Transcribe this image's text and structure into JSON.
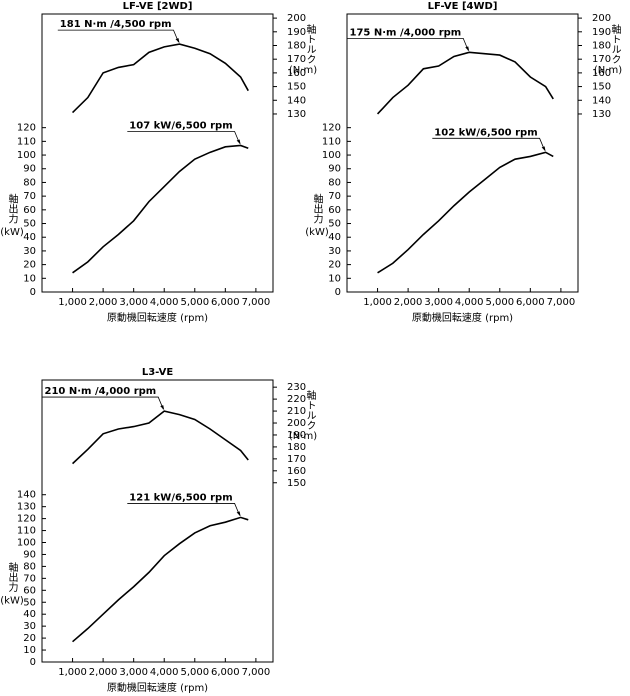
{
  "chart_data": [
    {
      "type": "line",
      "title": "LF-VE [2WD]",
      "xlabel": "原動機回転速度 (rpm)",
      "ylabel": "軸出力",
      "yunit": "(kW)",
      "y2label": "軸トルク",
      "y2unit": "(N·m)",
      "x": [
        1000,
        1500,
        2000,
        2500,
        3000,
        3500,
        4000,
        4500,
        5000,
        5500,
        6000,
        6500,
        6750
      ],
      "series": [
        {
          "axis": "y2",
          "color": "#000000",
          "values": [
            131,
            142,
            160,
            164,
            166,
            175,
            179,
            181,
            178,
            174,
            167,
            157,
            147
          ]
        },
        {
          "color": "#000000",
          "values": [
            14,
            22,
            33,
            42,
            52,
            66,
            77,
            88,
            97,
            102,
            106,
            107,
            105
          ]
        }
      ],
      "annotations": [
        "181 N·m /4,500 rpm",
        "107 kW/6,500 rpm"
      ],
      "xlim": [
        0,
        7560
      ],
      "xticks": [
        {
          "value": 1000,
          "label": "1,000"
        },
        {
          "value": 2000,
          "label": "2,000"
        },
        {
          "value": 3000,
          "label": "3,000"
        },
        {
          "value": 4000,
          "label": "4,000"
        },
        {
          "value": 5000,
          "label": "5,000"
        },
        {
          "value": 6000,
          "label": "6,000"
        },
        {
          "value": 7000,
          "label": "7,000"
        }
      ],
      "ylim": [
        0,
        203
      ],
      "yticks": [
        0,
        10,
        20,
        30,
        40,
        50,
        60,
        70,
        80,
        90,
        100,
        110,
        120
      ],
      "y2lim": [
        0,
        203
      ],
      "y2ticks": [
        130,
        140,
        150,
        160,
        170,
        180,
        190,
        200
      ]
    },
    {
      "type": "line",
      "title": "LF-VE [4WD]",
      "xlabel": "原動機回転速度 (rpm)",
      "ylabel": "軸出力",
      "yunit": "(kW)",
      "y2label": "軸トルク",
      "y2unit": "(N·m)",
      "x": [
        1000,
        1500,
        2000,
        2500,
        3000,
        3500,
        4000,
        4500,
        5000,
        5500,
        6000,
        6500,
        6750
      ],
      "series": [
        {
          "axis": "y2",
          "color": "#000000",
          "values": [
            130,
            142,
            151,
            163,
            165,
            172,
            175,
            174,
            173,
            168,
            157,
            150,
            141
          ]
        },
        {
          "color": "#000000",
          "values": [
            14,
            21,
            31,
            42,
            52,
            63,
            73,
            82,
            91,
            97,
            99,
            102,
            99
          ]
        }
      ],
      "annotations": [
        "175 N·m /4,000 rpm",
        "102 kW/6,500 rpm"
      ],
      "xlim": [
        0,
        7560
      ],
      "xticks": [
        {
          "value": 1000,
          "label": "1,000"
        },
        {
          "value": 2000,
          "label": "2,000"
        },
        {
          "value": 3000,
          "label": "3,000"
        },
        {
          "value": 4000,
          "label": "4,000"
        },
        {
          "value": 5000,
          "label": "5,000"
        },
        {
          "value": 6000,
          "label": "6,000"
        },
        {
          "value": 7000,
          "label": "7,000"
        }
      ],
      "ylim": [
        0,
        203
      ],
      "yticks": [
        0,
        10,
        20,
        30,
        40,
        50,
        60,
        70,
        80,
        90,
        100,
        110,
        120
      ],
      "y2lim": [
        0,
        203
      ],
      "y2ticks": [
        130,
        140,
        150,
        160,
        170,
        180,
        190,
        200
      ]
    },
    {
      "type": "line",
      "title": "L3-VE",
      "xlabel": "原動機回転速度 (rpm)",
      "ylabel": "軸出力",
      "yunit": "(kW)",
      "y2label": "軸トルク",
      "y2unit": "(N·m)",
      "x": [
        1000,
        1500,
        2000,
        2500,
        3000,
        3500,
        4000,
        4500,
        5000,
        5500,
        6000,
        6500,
        6750
      ],
      "series": [
        {
          "axis": "y2",
          "color": "#000000",
          "values": [
            166,
            178,
            191,
            195,
            197,
            200,
            210,
            207,
            203,
            195,
            186,
            177,
            169
          ]
        },
        {
          "color": "#000000",
          "values": [
            17,
            28,
            40,
            52,
            63,
            75,
            89,
            99,
            108,
            114,
            117,
            121,
            119
          ]
        }
      ],
      "annotations": [
        "210 N·m /4,000 rpm",
        "121 kW/6,500 rpm"
      ],
      "xlim": [
        0,
        7560
      ],
      "xticks": [
        {
          "value": 1000,
          "label": "1,000"
        },
        {
          "value": 2000,
          "label": "2,000"
        },
        {
          "value": 3000,
          "label": "3,000"
        },
        {
          "value": 4000,
          "label": "4,000"
        },
        {
          "value": 5000,
          "label": "5,000"
        },
        {
          "value": 6000,
          "label": "6,000"
        },
        {
          "value": 7000,
          "label": "7,000"
        }
      ],
      "ylim": [
        0,
        236
      ],
      "yticks": [
        0,
        10,
        20,
        30,
        40,
        50,
        60,
        70,
        80,
        90,
        100,
        110,
        120,
        130,
        140
      ],
      "y2lim": [
        0,
        236
      ],
      "y2ticks": [
        150,
        160,
        170,
        180,
        190,
        200,
        210,
        220,
        230
      ]
    }
  ]
}
